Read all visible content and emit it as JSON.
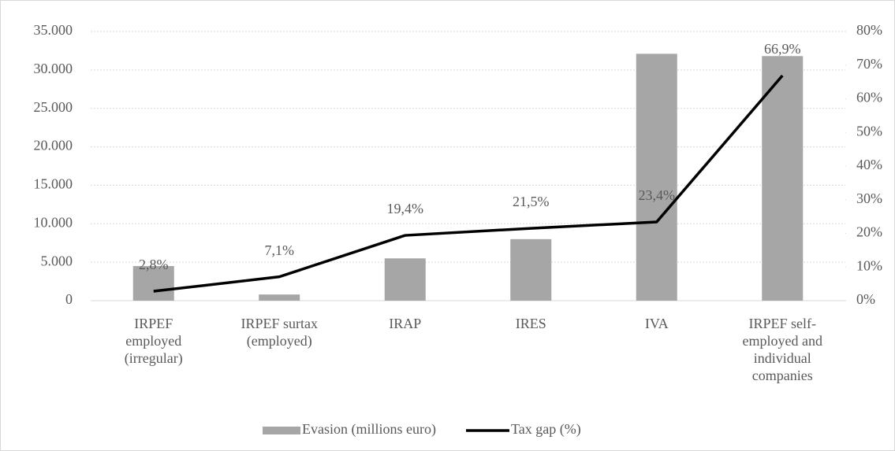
{
  "chart_data": {
    "type": "bar_line",
    "categories": [
      "IRPEF employed (irregular)",
      "IRPEF surtax (employed)",
      "IRAP",
      "IRES",
      "IVA",
      "IRPEF self-employed and individual companies"
    ],
    "series": [
      {
        "name": "Evasion (millions euro)",
        "color": "#a6a6a6",
        "type": "bar",
        "values": [
          4500,
          800,
          5500,
          8000,
          32100,
          31800
        ]
      },
      {
        "name": "Tax gap (%)",
        "color": "#000000",
        "type": "line",
        "axis": "y2",
        "values": [
          2.8,
          7.1,
          19.4,
          21.5,
          23.4,
          66.9
        ],
        "value_labels": [
          "2,8%",
          "7,1%",
          "19,4%",
          "21,5%",
          "23,4%",
          "66,9%"
        ]
      }
    ],
    "ylim": [
      0,
      35000
    ],
    "yticks": [
      0,
      {
        "value": 5000,
        "label": "5.000"
      },
      {
        "value": 10000,
        "label": "10.000"
      },
      {
        "value": 15000,
        "label": "15.000"
      },
      {
        "value": 20000,
        "label": "20.000"
      },
      {
        "value": 25000,
        "label": "25.000"
      },
      {
        "value": 30000,
        "label": "30.000"
      },
      {
        "value": 35000,
        "label": "35.000"
      }
    ],
    "y2lim": [
      0,
      80
    ],
    "y2ticks": [
      {
        "value": 0,
        "label": "0%"
      },
      {
        "value": 10,
        "label": "10%"
      },
      {
        "value": 20,
        "label": "20%"
      },
      {
        "value": 30,
        "label": "30%"
      },
      {
        "value": 40,
        "label": "40%"
      },
      {
        "value": 50,
        "label": "50%"
      },
      {
        "value": 60,
        "label": "60%"
      },
      {
        "value": 70,
        "label": "70%"
      },
      {
        "value": 80,
        "label": "80%"
      }
    ],
    "grid": true,
    "legend": "bottom"
  }
}
